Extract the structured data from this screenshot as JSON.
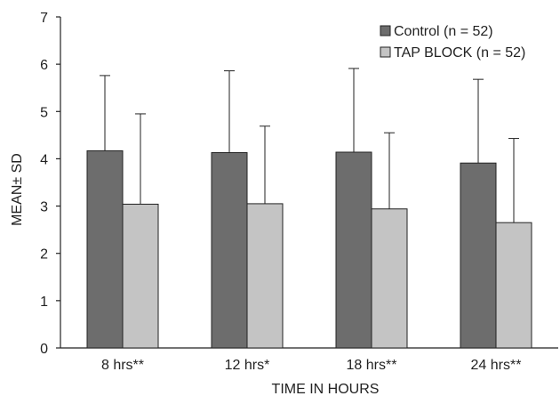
{
  "chart_data": {
    "type": "bar",
    "categories": [
      "8 hrs**",
      "12 hrs*",
      "18 hrs**",
      "24 hrs**"
    ],
    "series": [
      {
        "name": "Control (n = 52)",
        "color": "#6d6d6d",
        "values": [
          4.17,
          4.13,
          4.14,
          3.91
        ],
        "error": [
          1.59,
          1.73,
          1.77,
          1.77
        ]
      },
      {
        "name": "TAP BLOCK (n = 52)",
        "color": "#c4c4c4",
        "values": [
          3.04,
          3.05,
          2.94,
          2.65
        ],
        "error": [
          1.91,
          1.64,
          1.61,
          1.78
        ]
      }
    ],
    "xlabel": "TIME IN HOURS",
    "ylabel": "MEAN± SD",
    "ylim": [
      0,
      7
    ],
    "yticks": [
      0,
      1,
      2,
      3,
      4,
      5,
      6,
      7
    ],
    "grid": false,
    "legend_position": "top-right"
  }
}
